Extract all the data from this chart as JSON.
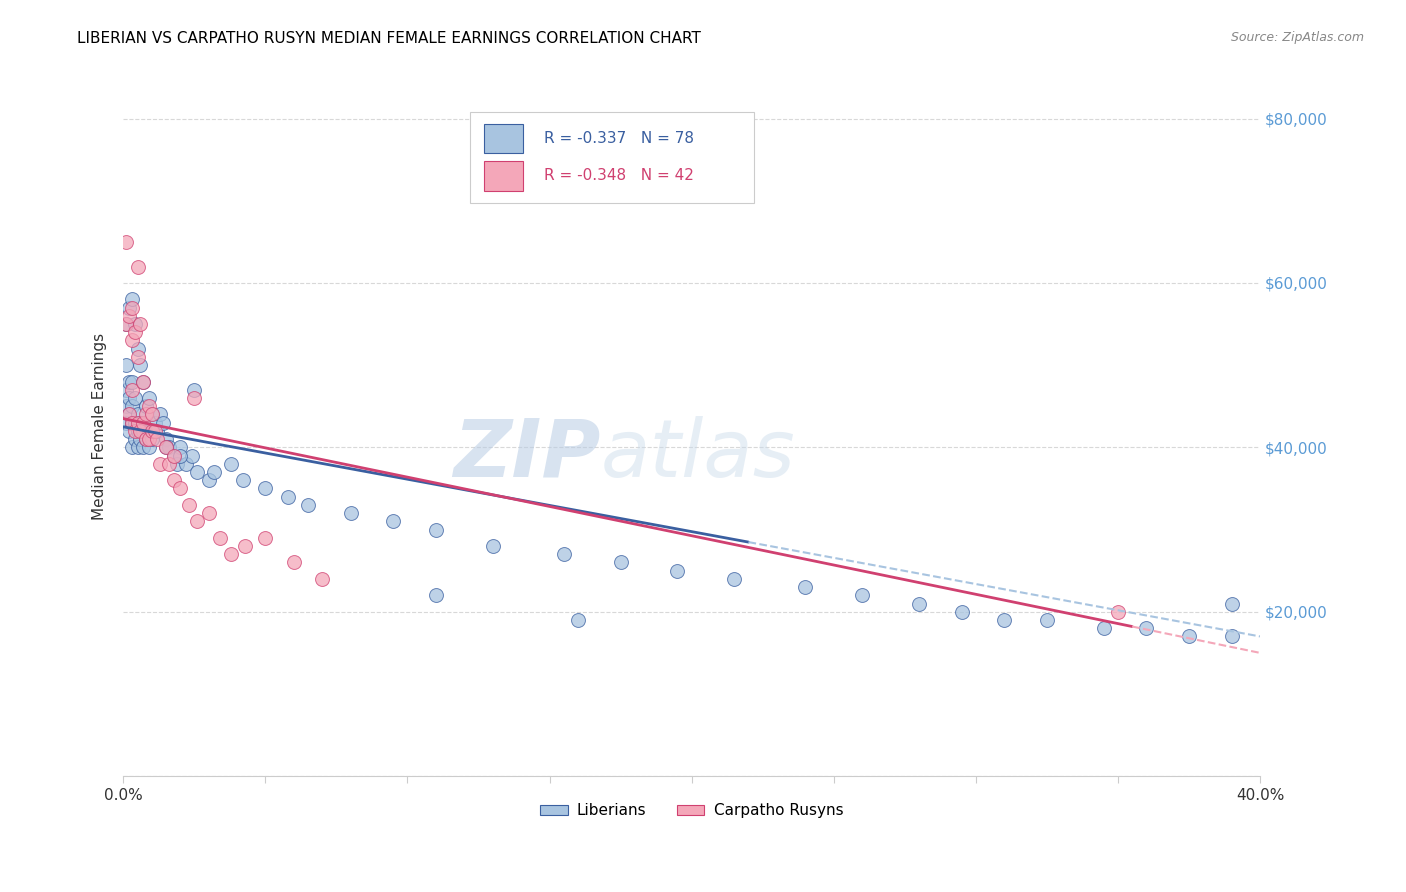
{
  "title": "LIBERIAN VS CARPATHO RUSYN MEDIAN FEMALE EARNINGS CORRELATION CHART",
  "source": "Source: ZipAtlas.com",
  "ylabel": "Median Female Earnings",
  "xlim": [
    0.0,
    0.4
  ],
  "ylim": [
    0,
    85000
  ],
  "ytick_labels_right": [
    "$20,000",
    "$40,000",
    "$60,000",
    "$80,000"
  ],
  "ytick_vals_right": [
    20000,
    40000,
    60000,
    80000
  ],
  "color_liberian": "#a8c4e0",
  "color_rusyn": "#f4a7b9",
  "line_color_liberian": "#3a5fa0",
  "line_color_rusyn": "#d04070",
  "background_color": "#ffffff",
  "grid_color": "#d8d8d8",
  "watermark_text": "ZIPatlas",
  "liberian_x": [
    0.001,
    0.001,
    0.001,
    0.001,
    0.001,
    0.002,
    0.002,
    0.002,
    0.002,
    0.002,
    0.003,
    0.003,
    0.003,
    0.003,
    0.003,
    0.004,
    0.004,
    0.004,
    0.004,
    0.005,
    0.005,
    0.005,
    0.005,
    0.006,
    0.006,
    0.006,
    0.007,
    0.007,
    0.007,
    0.008,
    0.008,
    0.009,
    0.009,
    0.01,
    0.01,
    0.011,
    0.012,
    0.013,
    0.014,
    0.015,
    0.016,
    0.018,
    0.019,
    0.02,
    0.022,
    0.024,
    0.026,
    0.03,
    0.032,
    0.038,
    0.042,
    0.05,
    0.058,
    0.065,
    0.08,
    0.095,
    0.11,
    0.13,
    0.155,
    0.175,
    0.195,
    0.215,
    0.24,
    0.26,
    0.28,
    0.295,
    0.31,
    0.325,
    0.345,
    0.36,
    0.375,
    0.39,
    0.015,
    0.02,
    0.025,
    0.11,
    0.16,
    0.39
  ],
  "liberian_y": [
    43000,
    45000,
    47000,
    50000,
    55000,
    42000,
    44000,
    46000,
    48000,
    57000,
    40000,
    43000,
    45000,
    48000,
    58000,
    41000,
    43000,
    46000,
    55000,
    40000,
    42000,
    44000,
    52000,
    41000,
    43000,
    50000,
    40000,
    42000,
    48000,
    41000,
    45000,
    40000,
    46000,
    41000,
    44000,
    43000,
    42000,
    44000,
    43000,
    41000,
    40000,
    39000,
    38000,
    40000,
    38000,
    39000,
    37000,
    36000,
    37000,
    38000,
    36000,
    35000,
    34000,
    33000,
    32000,
    31000,
    30000,
    28000,
    27000,
    26000,
    25000,
    24000,
    23000,
    22000,
    21000,
    20000,
    19000,
    19000,
    18000,
    18000,
    17000,
    17000,
    40000,
    39000,
    47000,
    22000,
    19000,
    21000
  ],
  "rusyn_x": [
    0.001,
    0.001,
    0.002,
    0.002,
    0.003,
    0.003,
    0.003,
    0.004,
    0.004,
    0.005,
    0.005,
    0.006,
    0.006,
    0.007,
    0.007,
    0.008,
    0.008,
    0.009,
    0.009,
    0.01,
    0.011,
    0.012,
    0.013,
    0.015,
    0.016,
    0.018,
    0.02,
    0.023,
    0.026,
    0.03,
    0.034,
    0.038,
    0.043,
    0.05,
    0.06,
    0.07,
    0.025,
    0.005,
    0.003,
    0.01,
    0.35,
    0.018
  ],
  "rusyn_y": [
    55000,
    65000,
    44000,
    56000,
    43000,
    47000,
    53000,
    42000,
    54000,
    43000,
    51000,
    42000,
    55000,
    43000,
    48000,
    41000,
    44000,
    41000,
    45000,
    42000,
    42000,
    41000,
    38000,
    40000,
    38000,
    36000,
    35000,
    33000,
    31000,
    32000,
    29000,
    27000,
    28000,
    29000,
    26000,
    24000,
    46000,
    62000,
    57000,
    44000,
    20000,
    39000
  ]
}
